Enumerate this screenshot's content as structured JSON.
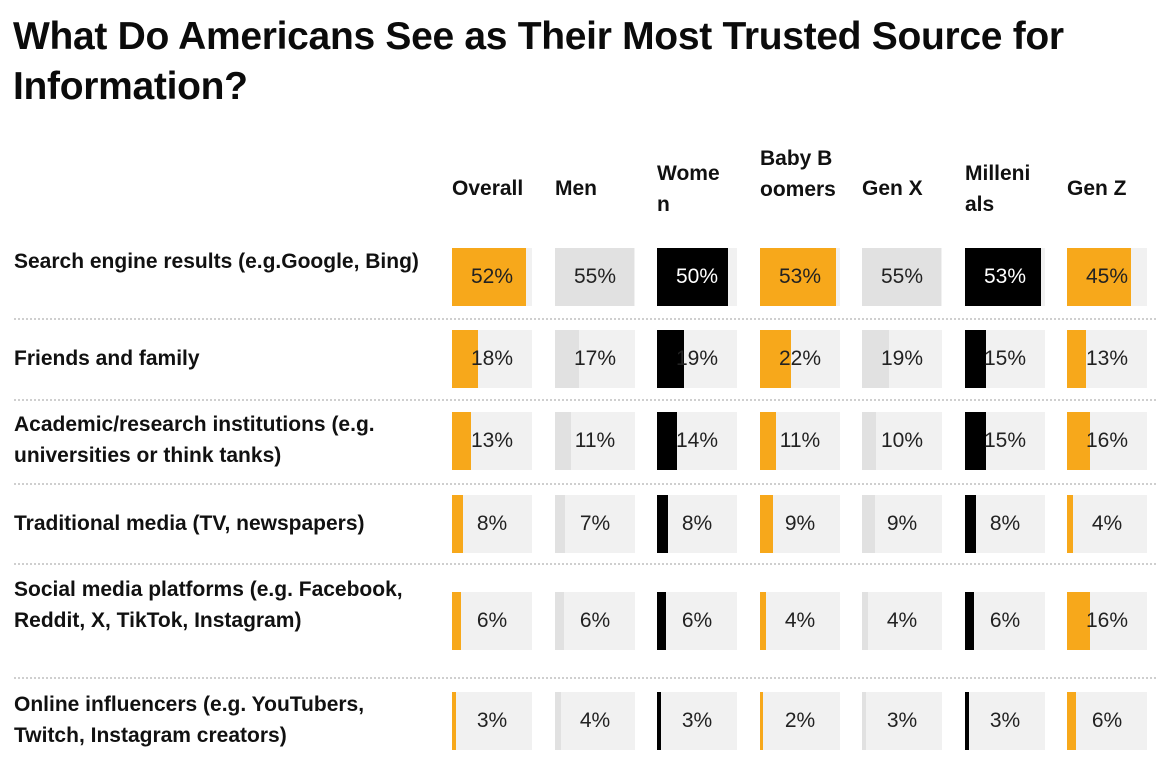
{
  "chart_data": {
    "type": "table",
    "title": "What Do Americans See as Their Most Trusted Source for Information?",
    "scale_max": 56,
    "columns": [
      {
        "label": "Overall",
        "display": "Overall",
        "color": "#f7a81b",
        "track": "#f1f1f1",
        "text": "dark-on-light"
      },
      {
        "label": "Men",
        "display": "Men",
        "color": "#e1e1e1",
        "track": "#f1f1f1",
        "text": "dark-on-light"
      },
      {
        "label": "Women",
        "display": "Women",
        "color": "#000000",
        "track": "#f1f1f1",
        "text": "light-on-dark"
      },
      {
        "label": "Baby Boomers",
        "display": "Baby Boomers",
        "color": "#f7a81b",
        "track": "#f1f1f1",
        "text": "dark-on-light"
      },
      {
        "label": "Gen X",
        "display": "Gen X",
        "color": "#e1e1e1",
        "track": "#f1f1f1",
        "text": "dark-on-light"
      },
      {
        "label": "Millenials",
        "display": "Millenials",
        "color": "#000000",
        "track": "#f1f1f1",
        "text": "light-on-dark"
      },
      {
        "label": "Gen Z",
        "display": "Gen Z",
        "color": "#f7a81b",
        "track": "#f1f1f1",
        "text": "dark-on-light"
      }
    ],
    "rows": [
      {
        "label": "Search engine results (e.g.Google, Bing)",
        "values": [
          52,
          55,
          50,
          53,
          55,
          53,
          45
        ]
      },
      {
        "label": "Friends and family",
        "values": [
          18,
          17,
          19,
          22,
          19,
          15,
          13
        ]
      },
      {
        "label": "Academic/research institutions (e.g. universities or think tanks)",
        "values": [
          13,
          11,
          14,
          11,
          10,
          15,
          16
        ]
      },
      {
        "label": "Traditional media (TV, newspapers)",
        "values": [
          8,
          7,
          8,
          9,
          9,
          8,
          4
        ]
      },
      {
        "label": "Social media platforms (e.g. Facebook, Reddit, X, TikTok, Instagram)",
        "values": [
          6,
          6,
          6,
          4,
          4,
          6,
          16
        ]
      },
      {
        "label": "Online influencers (e.g. YouTubers, Twitch, Instagram creators)",
        "values": [
          3,
          4,
          3,
          2,
          3,
          3,
          6
        ]
      }
    ],
    "value_suffix": "%"
  },
  "headers": {
    "overall": "Overall",
    "men": "Men",
    "women": "Women",
    "baby_boomers": "Baby Boomers",
    "gen_x": "Gen X",
    "millenials": "Millenials",
    "gen_z": "Gen Z"
  }
}
